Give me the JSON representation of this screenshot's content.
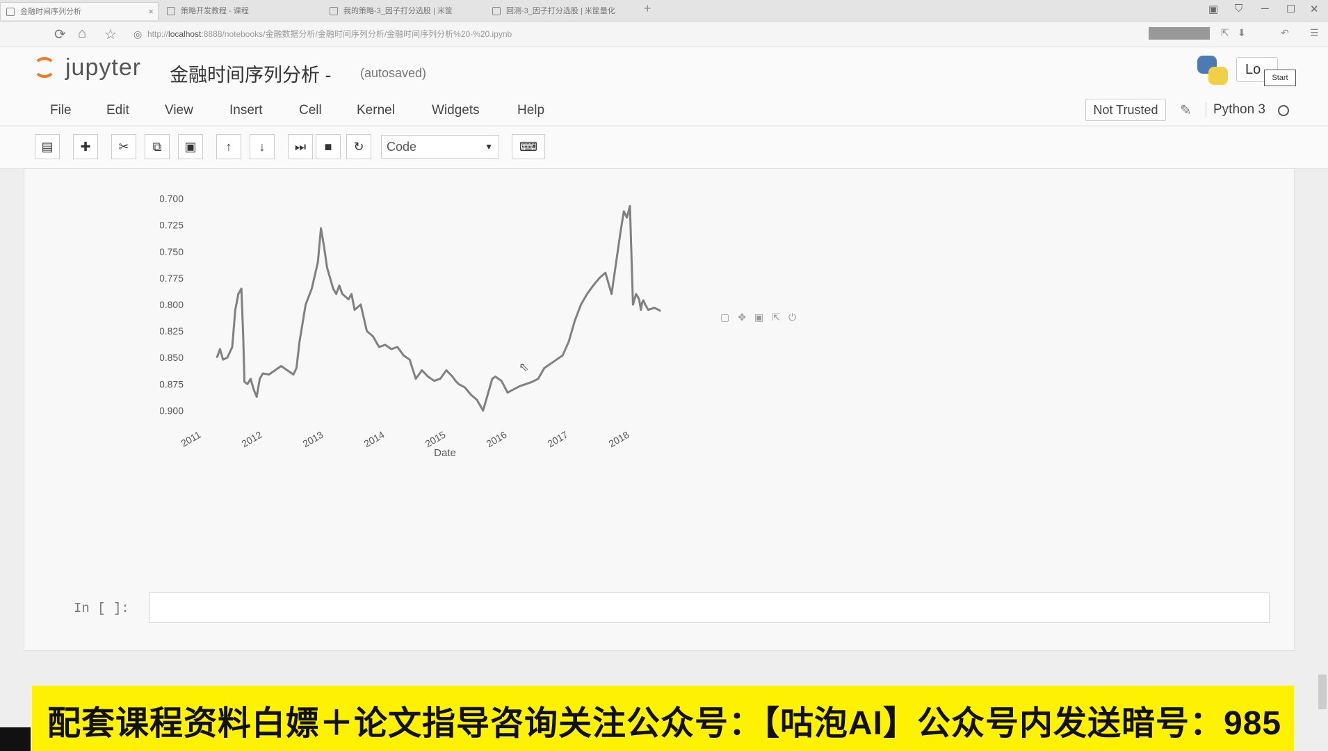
{
  "browser": {
    "tabs": [
      {
        "label": "金融时间序列分析",
        "active": true
      },
      {
        "label": "策略开发教程 - 课程",
        "active": false
      },
      {
        "label": "我的策略-3_因子打分选股 | 米筐",
        "active": false
      },
      {
        "label": "回测-3_因子打分选股 | 米筐量化",
        "active": false
      }
    ],
    "new_tab": "+",
    "url_prefix": "http://",
    "url_host": "localhost",
    "url_rest": ":8888/notebooks/金融数据分析/金融时间序列分析/金融时间序列分析%20-%20.ipynb"
  },
  "jupyter": {
    "logo_text": "jupyter",
    "notebook_title": "金融时间序列分析 -",
    "autosave": "(autosaved)",
    "logout": "Lo",
    "start": "Start",
    "menu": [
      "File",
      "Edit",
      "View",
      "Insert",
      "Cell",
      "Kernel",
      "Widgets",
      "Help"
    ],
    "not_trusted": "Not Trusted",
    "kernel_name": "Python 3",
    "cell_type": "Code",
    "prompt": "In [ ]:"
  },
  "chart_data": {
    "type": "line",
    "xlabel": "Date",
    "ylabel": "",
    "x_ticks": [
      "2011",
      "2012",
      "2013",
      "2014",
      "2015",
      "2016",
      "2017",
      "2018"
    ],
    "y_ticks": [
      "-0.700",
      "-0.725",
      "-0.750",
      "-0.775",
      "-0.800",
      "-0.825",
      "-0.850",
      "-0.875",
      "-0.900"
    ],
    "ylim": [
      -0.905,
      -0.695
    ],
    "xlim": [
      2011.0,
      2018.5
    ],
    "color": "#808080",
    "series": [
      {
        "x": [
          2011.25,
          2011.3,
          2011.35,
          2011.42,
          2011.5,
          2011.55,
          2011.6,
          2011.65,
          2011.68,
          2011.7,
          2011.75,
          2011.8,
          2011.85,
          2011.9,
          2011.95,
          2012.0,
          2012.1,
          2012.2,
          2012.3,
          2012.4,
          2012.5,
          2012.55,
          2012.6,
          2012.7,
          2012.8,
          2012.9,
          2012.95,
          2013.0,
          2013.05,
          2013.1,
          2013.15,
          2013.2,
          2013.25,
          2013.3,
          2013.4,
          2013.45,
          2013.5,
          2013.6,
          2013.7,
          2013.8,
          2013.9,
          2014.0,
          2014.1,
          2014.2,
          2014.3,
          2014.4,
          2014.5,
          2014.6,
          2014.7,
          2014.8,
          2014.9,
          2015.0,
          2015.1,
          2015.15,
          2015.2,
          2015.3,
          2015.4,
          2015.5,
          2015.6,
          2015.7,
          2015.75,
          2015.8,
          2015.9,
          2016.0,
          2016.1,
          2016.2,
          2016.3,
          2016.4,
          2016.5,
          2016.6,
          2016.7,
          2016.8,
          2016.9,
          2017.0,
          2017.1,
          2017.2,
          2017.3,
          2017.4,
          2017.5,
          2017.6,
          2017.7,
          2017.75,
          2017.8,
          2017.85,
          2017.9,
          2017.95,
          2018.0,
          2018.05,
          2018.1,
          2018.15,
          2018.18,
          2018.2,
          2018.22,
          2018.25,
          2018.3,
          2018.4,
          2018.5
        ],
        "y": [
          -0.85,
          -0.842,
          -0.852,
          -0.85,
          -0.84,
          -0.805,
          -0.79,
          -0.785,
          -0.83,
          -0.873,
          -0.875,
          -0.87,
          -0.88,
          -0.887,
          -0.87,
          -0.865,
          -0.866,
          -0.862,
          -0.858,
          -0.862,
          -0.866,
          -0.86,
          -0.835,
          -0.8,
          -0.785,
          -0.76,
          -0.728,
          -0.745,
          -0.765,
          -0.775,
          -0.785,
          -0.79,
          -0.782,
          -0.79,
          -0.795,
          -0.79,
          -0.805,
          -0.8,
          -0.825,
          -0.83,
          -0.84,
          -0.838,
          -0.842,
          -0.84,
          -0.848,
          -0.852,
          -0.87,
          -0.862,
          -0.868,
          -0.872,
          -0.87,
          -0.862,
          -0.868,
          -0.872,
          -0.875,
          -0.878,
          -0.885,
          -0.89,
          -0.9,
          -0.88,
          -0.87,
          -0.868,
          -0.872,
          -0.883,
          -0.88,
          -0.877,
          -0.875,
          -0.873,
          -0.87,
          -0.86,
          -0.856,
          -0.852,
          -0.848,
          -0.835,
          -0.815,
          -0.8,
          -0.79,
          -0.782,
          -0.775,
          -0.77,
          -0.79,
          -0.77,
          -0.75,
          -0.73,
          -0.712,
          -0.718,
          -0.707,
          -0.8,
          -0.79,
          -0.795,
          -0.805,
          -0.798,
          -0.796,
          -0.8,
          -0.805,
          -0.803,
          -0.806
        ]
      }
    ]
  },
  "banner": {
    "text": "配套课程资料白嫖＋论文指导咨询关注公众号：【咕泡AI】公众号内发送暗号：985"
  }
}
